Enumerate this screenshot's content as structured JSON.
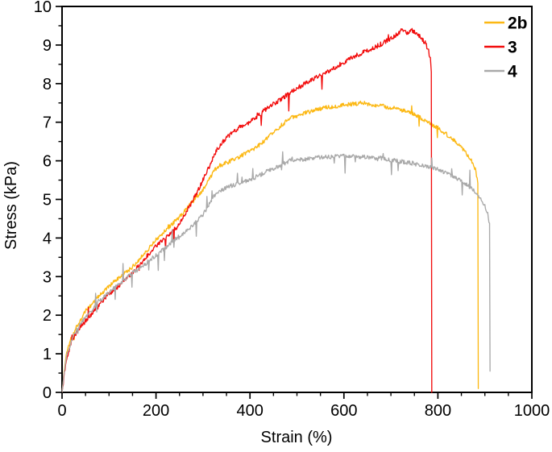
{
  "figure": {
    "background": "#ffffff",
    "axis_color": "#000000",
    "text_color": "#000000"
  },
  "chart_data": {
    "type": "line",
    "title": "",
    "xlabel": "Strain (%)",
    "ylabel": "Stress (kPa)",
    "xlim": [
      0,
      1000
    ],
    "ylim": [
      0,
      10
    ],
    "x_major_ticks": [
      0,
      200,
      400,
      600,
      800,
      1000
    ],
    "x_minor_step": 50,
    "y_major_ticks": [
      0,
      1,
      2,
      3,
      4,
      5,
      6,
      7,
      8,
      9,
      10
    ],
    "y_minor_step": 0.5,
    "grid": false,
    "legend_position": "top-right",
    "series": [
      {
        "name": "2b",
        "color": "#fcb813",
        "noise": 0.055,
        "spike_chance": 0.012,
        "spike_scale": 0.22,
        "points": [
          [
            0,
            0
          ],
          [
            5,
            0.6
          ],
          [
            10,
            1.05
          ],
          [
            20,
            1.45
          ],
          [
            35,
            1.8
          ],
          [
            50,
            2.1
          ],
          [
            75,
            2.45
          ],
          [
            100,
            2.75
          ],
          [
            125,
            3.0
          ],
          [
            150,
            3.25
          ],
          [
            175,
            3.6
          ],
          [
            200,
            3.95
          ],
          [
            225,
            4.25
          ],
          [
            250,
            4.55
          ],
          [
            275,
            4.9
          ],
          [
            300,
            5.25
          ],
          [
            330,
            5.85
          ],
          [
            360,
            6.0
          ],
          [
            400,
            6.25
          ],
          [
            430,
            6.5
          ],
          [
            460,
            6.85
          ],
          [
            485,
            7.1
          ],
          [
            520,
            7.25
          ],
          [
            560,
            7.38
          ],
          [
            600,
            7.45
          ],
          [
            640,
            7.5
          ],
          [
            680,
            7.42
          ],
          [
            720,
            7.33
          ],
          [
            760,
            7.15
          ],
          [
            785,
            6.95
          ],
          [
            800,
            6.85
          ],
          [
            815,
            6.72
          ],
          [
            830,
            6.58
          ],
          [
            845,
            6.42
          ],
          [
            858,
            6.25
          ],
          [
            868,
            6.08
          ],
          [
            876,
            5.9
          ],
          [
            881,
            5.72
          ],
          [
            885,
            5.45
          ],
          [
            886,
            0.1
          ]
        ]
      },
      {
        "name": "3",
        "color": "#f20c0c",
        "noise": 0.06,
        "spike_chance": 0.012,
        "spike_scale": 0.3,
        "points": [
          [
            0,
            0
          ],
          [
            5,
            0.5
          ],
          [
            10,
            0.9
          ],
          [
            20,
            1.3
          ],
          [
            35,
            1.65
          ],
          [
            50,
            1.85
          ],
          [
            75,
            2.2
          ],
          [
            100,
            2.55
          ],
          [
            125,
            2.8
          ],
          [
            150,
            3.1
          ],
          [
            175,
            3.45
          ],
          [
            200,
            3.8
          ],
          [
            225,
            4.05
          ],
          [
            250,
            4.35
          ],
          [
            275,
            4.9
          ],
          [
            300,
            5.5
          ],
          [
            315,
            5.9
          ],
          [
            330,
            6.3
          ],
          [
            350,
            6.6
          ],
          [
            375,
            6.85
          ],
          [
            400,
            7.0
          ],
          [
            430,
            7.3
          ],
          [
            460,
            7.55
          ],
          [
            485,
            7.75
          ],
          [
            510,
            7.95
          ],
          [
            540,
            8.15
          ],
          [
            570,
            8.35
          ],
          [
            600,
            8.55
          ],
          [
            630,
            8.75
          ],
          [
            660,
            8.9
          ],
          [
            690,
            9.1
          ],
          [
            710,
            9.25
          ],
          [
            725,
            9.4
          ],
          [
            735,
            9.3
          ],
          [
            745,
            9.38
          ],
          [
            755,
            9.3
          ],
          [
            765,
            9.18
          ],
          [
            773,
            9.05
          ],
          [
            779,
            8.9
          ],
          [
            784,
            8.65
          ],
          [
            786,
            8.3
          ],
          [
            787,
            0
          ]
        ]
      },
      {
        "name": "4",
        "color": "#a9a9a9",
        "noise": 0.055,
        "spike_chance": 0.045,
        "spike_scale": 0.32,
        "points": [
          [
            0,
            0
          ],
          [
            5,
            0.55
          ],
          [
            10,
            0.95
          ],
          [
            20,
            1.35
          ],
          [
            35,
            1.7
          ],
          [
            50,
            1.95
          ],
          [
            75,
            2.3
          ],
          [
            100,
            2.6
          ],
          [
            125,
            2.85
          ],
          [
            150,
            3.1
          ],
          [
            175,
            3.3
          ],
          [
            200,
            3.55
          ],
          [
            225,
            3.8
          ],
          [
            250,
            4.05
          ],
          [
            275,
            4.3
          ],
          [
            300,
            4.6
          ],
          [
            330,
            5.2
          ],
          [
            360,
            5.35
          ],
          [
            400,
            5.5
          ],
          [
            440,
            5.75
          ],
          [
            485,
            6.0
          ],
          [
            520,
            6.05
          ],
          [
            560,
            6.1
          ],
          [
            600,
            6.12
          ],
          [
            640,
            6.1
          ],
          [
            680,
            6.07
          ],
          [
            700,
            6.02
          ],
          [
            720,
            5.98
          ],
          [
            740,
            5.95
          ],
          [
            760,
            5.9
          ],
          [
            780,
            5.85
          ],
          [
            800,
            5.78
          ],
          [
            820,
            5.68
          ],
          [
            840,
            5.55
          ],
          [
            860,
            5.4
          ],
          [
            875,
            5.25
          ],
          [
            890,
            5.05
          ],
          [
            900,
            4.85
          ],
          [
            906,
            4.62
          ],
          [
            910,
            4.35
          ],
          [
            911,
            0.55
          ]
        ]
      }
    ]
  }
}
